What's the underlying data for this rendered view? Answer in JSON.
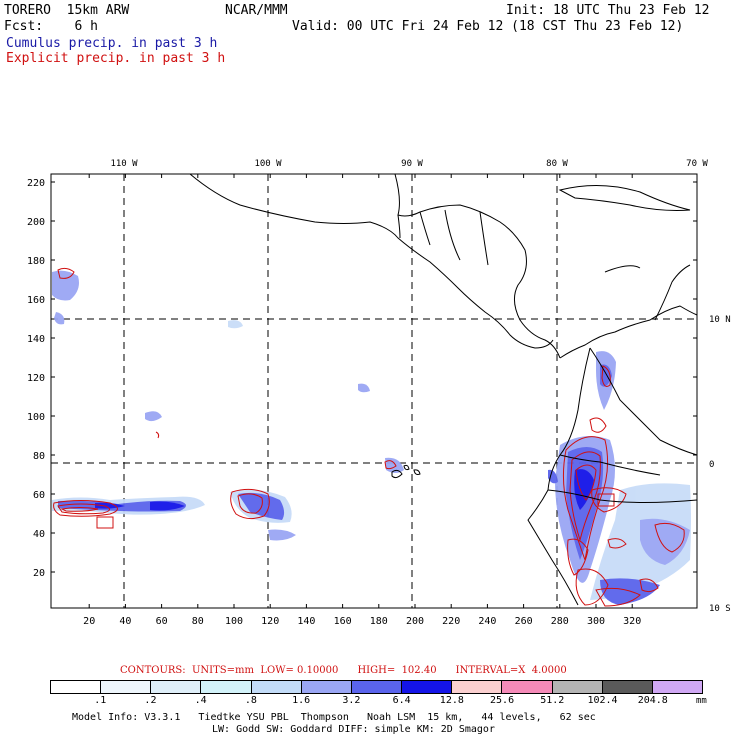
{
  "header": {
    "model": "TORERO  15km ARW",
    "center": "NCAR/MMM",
    "init": "Init: 18 UTC Thu 23 Feb 12",
    "fcst": "Fcst:    6 h",
    "valid": "Valid: 00 UTC Fri 24 Feb 12 (18 CST Thu 23 Feb 12)",
    "line_cumulus": "Cumulus precip. in past 3 h",
    "line_explicit": "Explicit precip. in past 3 h"
  },
  "colors": {
    "cumulus": "#1a1aa6",
    "explicit": "#d01010",
    "coast": "#000000"
  },
  "map": {
    "x_ticks": [
      "20",
      "40",
      "60",
      "80",
      "100",
      "120",
      "140",
      "160",
      "180",
      "200",
      "220",
      "240",
      "260",
      "280",
      "300",
      "320"
    ],
    "y_ticks": [
      "20",
      "40",
      "60",
      "80",
      "100",
      "120",
      "140",
      "160",
      "180",
      "200",
      "220"
    ],
    "lon_labels": [
      "110 W",
      "100 W",
      "90 W",
      "80 W",
      "70 W"
    ],
    "lat_labels": [
      "10 N",
      "0",
      "10 S"
    ]
  },
  "contours_info": "CONTOURS:  UNITS=mm  LOW= 0.10000      HIGH=  102.40      INTERVAL=X  4.0000",
  "colorbar": {
    "labels": [
      ".1",
      ".2",
      ".4",
      ".8",
      "1.6",
      "3.2",
      "6.4",
      "12.8",
      "25.6",
      "51.2",
      "102.4",
      "204.8"
    ],
    "colors": [
      "#ffffff",
      "#eef6fc",
      "#dfeff9",
      "#d3f3fa",
      "#c3dcf8",
      "#9aa6f4",
      "#5a64ec",
      "#1414e8",
      "#fbd0d0",
      "#f58ab8",
      "#b4b4b4",
      "#5a5a5a",
      "#d0a8f4"
    ],
    "unit": "mm"
  },
  "footer": {
    "line1": "Model Info: V3.3.1   Tiedtke YSU PBL  Thompson   Noah LSM  15 km,   44 levels,   62 sec",
    "line2": "LW: Godd SW: Goddard DIFF: simple KM: 2D Smagor"
  }
}
